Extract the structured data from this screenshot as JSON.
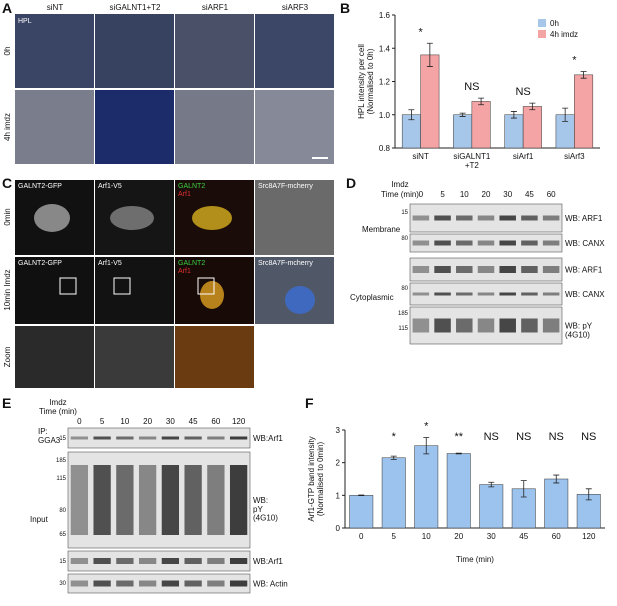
{
  "panel_a": {
    "letter": "A",
    "columns": [
      "siNT",
      "siGALNT1+T2",
      "siARF1",
      "siARF3"
    ],
    "rows": [
      "0h",
      "4h imdz"
    ],
    "stain": "HPL"
  },
  "panel_c": {
    "letter": "C",
    "row_labels": [
      "0min",
      "10min Imdz",
      "Zoom"
    ],
    "channel_labels": [
      "GALNT2-GFP",
      "Arf1-V5"
    ],
    "merge_labels": [
      "GALNT2",
      "Arf1"
    ],
    "membrane_label": "Src8A7F-mcherry"
  },
  "panel_d": {
    "letter": "D",
    "treatment": "Imdz",
    "time_label": "Time (min)",
    "lanes": [
      "0",
      "5",
      "10",
      "20",
      "30",
      "45",
      "60"
    ],
    "fractions": [
      "Membrane",
      "Cytoplasmic"
    ],
    "blots": [
      "WB: ARF1",
      "WB: CANX",
      "WB: ARF1",
      "WB: CANX",
      "WB: pY\n(4G10)"
    ],
    "mw_markers": [
      "15",
      "80",
      "80",
      "185",
      "115"
    ]
  },
  "panel_e": {
    "letter": "E",
    "treatment": "Imdz",
    "time_label": "Time (min)",
    "lanes": [
      "0",
      "5",
      "10",
      "20",
      "30",
      "45",
      "60",
      "120"
    ],
    "sections": [
      "IP:\nGGA3",
      "Input"
    ],
    "blots": [
      "WB:Arf1",
      "WB:\npY\n(4G10)",
      "WB:Arf1",
      "WB: Actin"
    ],
    "mw_markers": [
      "15",
      "185",
      "115",
      "80",
      "65",
      "15",
      "30"
    ]
  },
  "chart_data": [
    {
      "type": "bar",
      "panel": "B",
      "ylabel": "HPL intensity per cell\n(Normalised to 0h)",
      "categories": [
        "siNT",
        "siGALNT1\n+T2",
        "siArf1",
        "siArf3"
      ],
      "series": [
        {
          "name": "0h",
          "color": "#a7c7ea",
          "values": [
            1.0,
            1.0,
            1.0,
            1.0
          ],
          "errors": [
            0.03,
            0.01,
            0.02,
            0.04
          ]
        },
        {
          "name": "4h imdz",
          "color": "#f4a4a4",
          "values": [
            1.36,
            1.08,
            1.05,
            1.24
          ],
          "errors": [
            0.07,
            0.02,
            0.02,
            0.02
          ]
        }
      ],
      "annotations": [
        "*",
        "NS",
        "NS",
        "*"
      ],
      "ylim": [
        0.8,
        1.6
      ],
      "yticks": [
        0.8,
        {
          "value": 1.0,
          "label": "1.0"
        },
        1.2,
        1.4,
        1.6
      ],
      "legend": "upper right"
    },
    {
      "type": "bar",
      "panel": "F",
      "ylabel": "Arf1-GTP band intensity\n(Normalised to 0min)",
      "xlabel": "Time (min)",
      "categories": [
        "0",
        "5",
        "10",
        "20",
        "30",
        "45",
        "60",
        "120"
      ],
      "values": [
        1.0,
        2.15,
        2.52,
        2.28,
        1.33,
        1.2,
        1.5,
        1.03
      ],
      "errors": [
        0.01,
        0.05,
        0.25,
        0.01,
        0.07,
        0.25,
        0.12,
        0.17
      ],
      "color": "#9cc3ee",
      "annotations": [
        null,
        "*",
        "*",
        "**",
        "NS",
        "NS",
        "NS",
        "NS"
      ],
      "ylim": [
        0,
        3
      ],
      "yticks": [
        0,
        1,
        2,
        3
      ]
    }
  ]
}
